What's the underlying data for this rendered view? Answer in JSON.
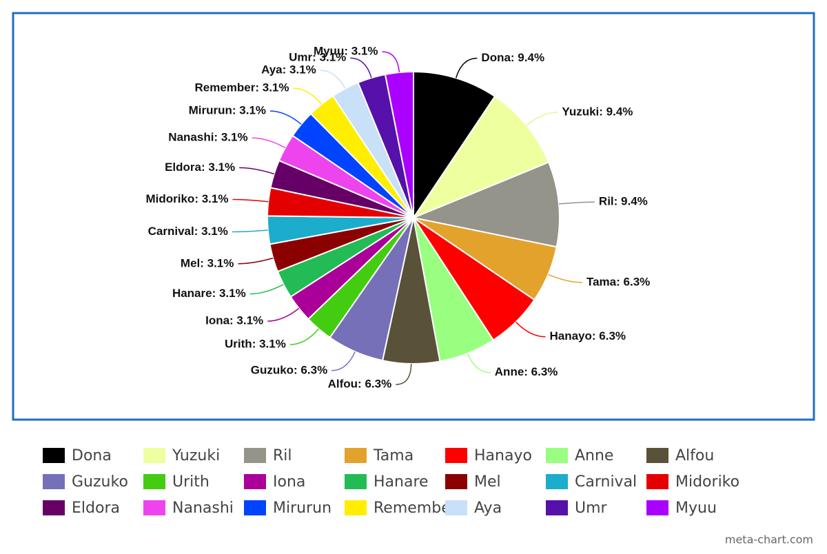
{
  "chart_data": {
    "type": "pie",
    "categories": [
      "Dona",
      "Yuzuki",
      "Ril",
      "Tama",
      "Hanayo",
      "Anne",
      "Alfou",
      "Guzuko",
      "Urith",
      "Iona",
      "Hanare",
      "Mel",
      "Carnival",
      "Midoriko",
      "Eldora",
      "Nanashi",
      "Mirurun",
      "Remember",
      "Aya",
      "Umr",
      "Myuu"
    ],
    "values": [
      9.4,
      9.4,
      9.4,
      6.3,
      6.3,
      6.3,
      6.3,
      6.3,
      3.1,
      3.1,
      3.1,
      3.1,
      3.1,
      3.1,
      3.1,
      3.1,
      3.1,
      3.1,
      3.1,
      3.1,
      3.1
    ],
    "value_labels": [
      "Dona: 9.4%",
      "Yuzuki: 9.4%",
      "Ril: 9.4%",
      "Tama: 6.3%",
      "Hanayo: 6.3%",
      "Anne: 6.3%",
      "Alfou: 6.3%",
      "Guzuko: 6.3%",
      "Urith: 3.1%",
      "Iona: 3.1%",
      "Hanare: 3.1%",
      "Mel: 3.1%",
      "Carnival: 3.1%",
      "Midoriko: 3.1%",
      "Eldora: 3.1%",
      "Nanashi: 3.1%",
      "Mirurun: 3.1%",
      "Remember: 3.1%",
      "Aya: 3.1%",
      "Umr: 3.1%",
      "Myuu: 3.1%"
    ],
    "colors": [
      "#000000",
      "#eeffa0",
      "#94948a",
      "#e3a22b",
      "#ff0000",
      "#99ff80",
      "#595138",
      "#7570b8",
      "#44cc11",
      "#aa0099",
      "#22bb55",
      "#8b0000",
      "#1caccc",
      "#e40000",
      "#660066",
      "#ee44ee",
      "#0044ff",
      "#ffee00",
      "#c8e0f8",
      "#5511aa",
      "#aa00ff"
    ],
    "legend": "bottom",
    "credit": "meta-chart.com"
  }
}
